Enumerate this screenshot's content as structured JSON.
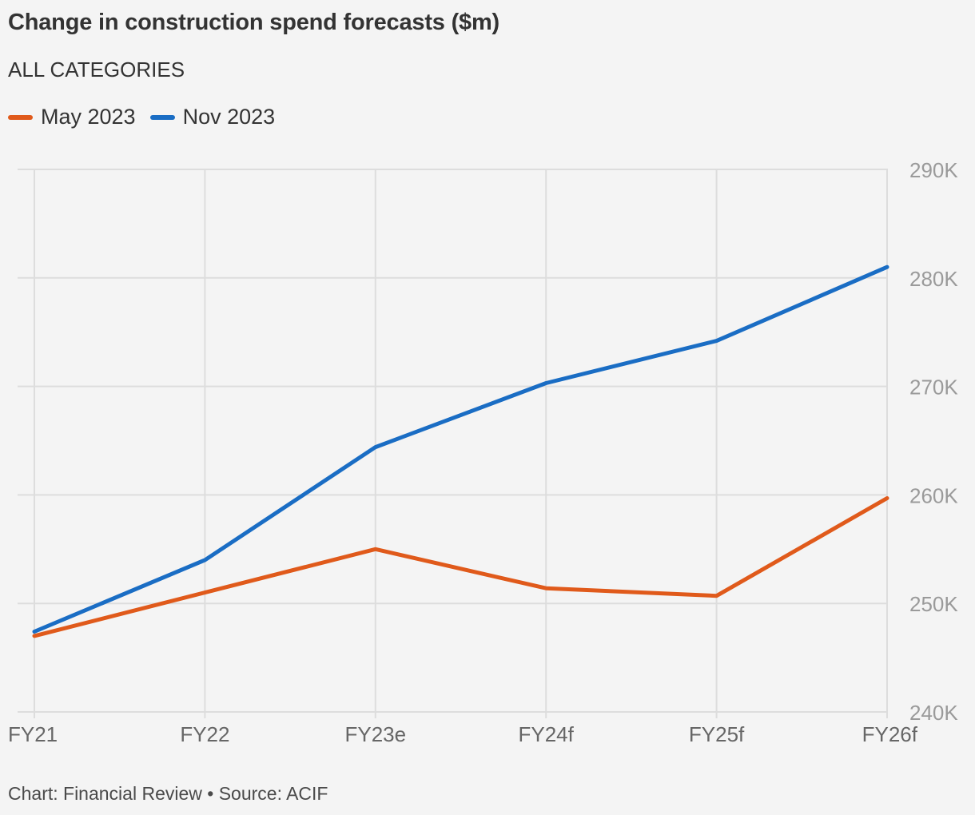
{
  "title": "Change in construction spend forecasts ($m)",
  "subtitle": "ALL CATEGORIES",
  "footer": "Chart: Financial Review • Source: ACIF",
  "colors": {
    "background": "#f4f4f4",
    "grid": "#dddddd",
    "tick_text": "#9a9a9a",
    "x_tick_text": "#666666",
    "may_2023": "#e05a1b",
    "nov_2023": "#1a6dc4"
  },
  "chart_data": {
    "type": "line",
    "title": "Change in construction spend forecasts ($m)",
    "subtitle": "ALL CATEGORIES",
    "categories": [
      "FY21",
      "FY22",
      "FY23e",
      "FY24f",
      "FY25f",
      "FY26f"
    ],
    "series": [
      {
        "name": "May 2023",
        "color": "#e05a1b",
        "values": [
          247000,
          251000,
          255000,
          251400,
          250700,
          259700
        ]
      },
      {
        "name": "Nov 2023",
        "color": "#1a6dc4",
        "values": [
          247400,
          254000,
          264400,
          270300,
          274200,
          281000
        ]
      }
    ],
    "ylim": [
      240000,
      290000
    ],
    "yticks": [
      240000,
      250000,
      260000,
      270000,
      280000,
      290000
    ],
    "ytick_labels": [
      "240K",
      "250K",
      "260K",
      "270K",
      "280K",
      "290K"
    ],
    "y_axis_side": "right",
    "xlabel": "",
    "ylabel": "",
    "grid": true,
    "legend_position": "top-left"
  }
}
